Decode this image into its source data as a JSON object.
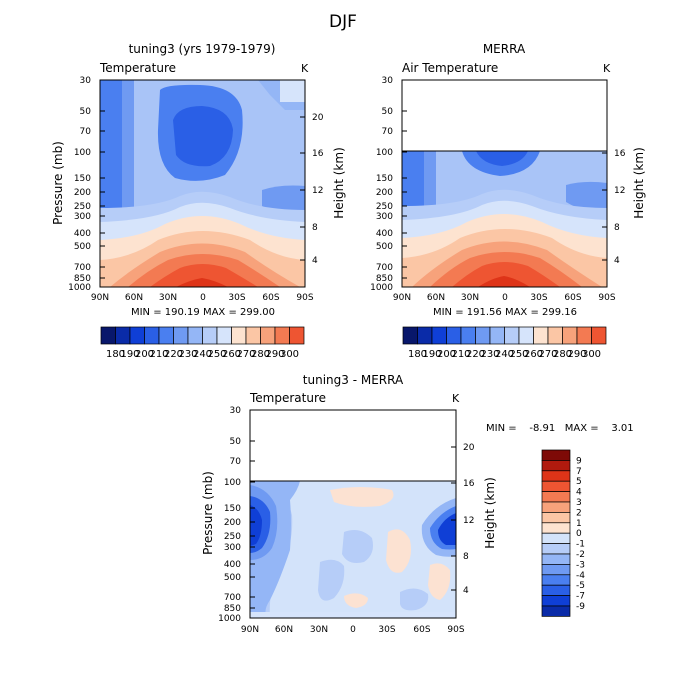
{
  "figure_title": "DJF",
  "palette": {
    "blues": [
      "#08176b",
      "#0a2ba8",
      "#0f3fd6",
      "#2a5fe6",
      "#4a7ff0",
      "#6f9af2",
      "#94b6f6",
      "#b6cdf8",
      "#d6e4fb"
    ],
    "reds": [
      "#fde3d0",
      "#fbc6a5",
      "#f7a27b",
      "#f37a52",
      "#ee5532",
      "#de3418",
      "#b11a0e",
      "#7e0a07"
    ],
    "background_blue": "#a9c4f7",
    "diff_light_blue": "#d3e3fa",
    "diff_light_red": "#fce2d2"
  },
  "chart_data": [
    {
      "type": "heatmap",
      "title": "tuning3 (yrs 1979-1979)",
      "variable": "Temperature",
      "units": "K",
      "ylabel": "Pressure (mb)",
      "y2label": "Height (km)",
      "x_ticks": [
        "90N",
        "60N",
        "30N",
        "0",
        "30S",
        "60S",
        "90S"
      ],
      "y_ticks": [
        "30",
        "50",
        "70",
        "100",
        "150",
        "200",
        "250",
        "300",
        "400",
        "500",
        "700",
        "850",
        "1000"
      ],
      "height_ticks": [
        "20",
        "16",
        "12",
        "8",
        "4"
      ],
      "stats": "MIN = 190.19   MAX = 299.00",
      "colorbar": [
        "180",
        "190",
        "200",
        "210",
        "220",
        "230",
        "240",
        "250",
        "260",
        "270",
        "280",
        "290",
        "300"
      ],
      "data_top_mb": 30,
      "data_range": [
        190.19,
        299.0
      ]
    },
    {
      "type": "heatmap",
      "title": "MERRA",
      "variable": "Air Temperature",
      "units": "K",
      "ylabel": "Pressure (mb)",
      "y2label": "Height (km)",
      "x_ticks": [
        "90N",
        "60N",
        "30N",
        "0",
        "30S",
        "60S",
        "90S"
      ],
      "y_ticks": [
        "30",
        "50",
        "70",
        "100",
        "150",
        "200",
        "250",
        "300",
        "400",
        "500",
        "700",
        "850",
        "1000"
      ],
      "height_ticks": [
        "16",
        "12",
        "8",
        "4"
      ],
      "stats": "MIN = 191.56   MAX = 299.16",
      "colorbar": [
        "180",
        "190",
        "200",
        "210",
        "220",
        "230",
        "240",
        "250",
        "260",
        "270",
        "280",
        "290",
        "300"
      ],
      "data_top_mb": 100,
      "data_range": [
        191.56,
        299.16
      ]
    },
    {
      "type": "heatmap",
      "title": "tuning3 - MERRA",
      "variable": "Temperature",
      "units": "K",
      "ylabel": "Pressure (mb)",
      "y2label": "Height (km)",
      "x_ticks": [
        "90N",
        "60N",
        "30N",
        "0",
        "30S",
        "60S",
        "90S"
      ],
      "y_ticks": [
        "30",
        "50",
        "70",
        "100",
        "150",
        "200",
        "250",
        "300",
        "400",
        "500",
        "700",
        "850",
        "1000"
      ],
      "height_ticks": [
        "20",
        "16",
        "12",
        "8",
        "4"
      ],
      "stats": "MIN =    -8.91   MAX =    3.01",
      "colorbar": [
        "9",
        "7",
        "5",
        "4",
        "3",
        "2",
        "1",
        "0",
        "-1",
        "-2",
        "-3",
        "-4",
        "-5",
        "-7",
        "-9"
      ],
      "data_top_mb": 100,
      "data_range": [
        -8.91,
        3.01
      ]
    }
  ]
}
